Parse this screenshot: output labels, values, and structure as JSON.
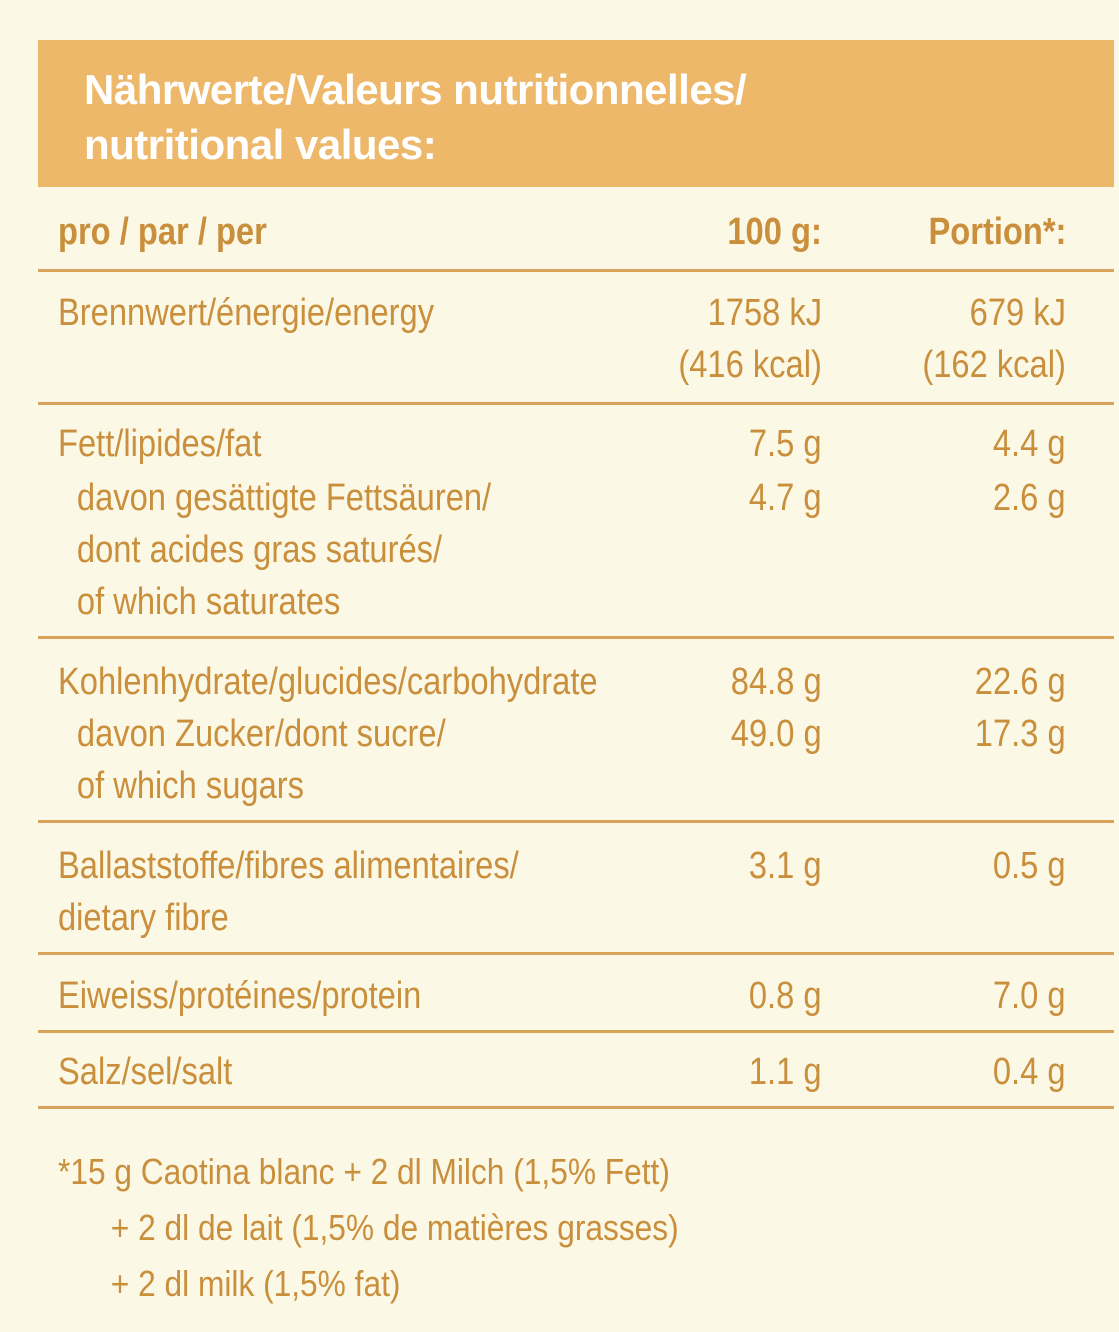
{
  "title": [
    "Nährwerte/Valeurs nutritionnelles/",
    "nutritional values:"
  ],
  "columns": {
    "label": "pro / par / per",
    "per100": "100 g:",
    "portion": "Portion*:"
  },
  "rows": [
    {
      "label": [
        "Brennwert/énergie/energy"
      ],
      "per100": [
        "1758 kJ",
        "(416 kcal)"
      ],
      "portion": [
        "679 kJ",
        "(162 kcal)"
      ]
    },
    {
      "label": [
        "Fett/lipides/fat"
      ],
      "per100": [
        "7.5 g"
      ],
      "portion": [
        "4.4 g"
      ]
    },
    {
      "label": [
        "davon gesättigte Fettsäuren/",
        "dont acides gras saturés/",
        "of which saturates"
      ],
      "per100": [
        "4.7 g"
      ],
      "portion": [
        "2.6 g"
      ]
    },
    {
      "label": [
        "Kohlenhydrate/glucides/carbohydrate"
      ],
      "per100": [
        "84.8 g"
      ],
      "portion": [
        "22.6 g"
      ]
    },
    {
      "label": [
        "davon Zucker/dont sucre/",
        "of which sugars"
      ],
      "per100": [
        "49.0 g"
      ],
      "portion": [
        "17.3 g"
      ]
    },
    {
      "label": [
        "Ballaststoffe/fibres alimentaires/",
        "dietary fibre"
      ],
      "per100": [
        "3.1 g"
      ],
      "portion": [
        "0.5 g"
      ]
    },
    {
      "label": [
        "Eiweiss/protéines/protein"
      ],
      "per100": [
        "0.8 g"
      ],
      "portion": [
        "7.0 g"
      ]
    },
    {
      "label": [
        "Salz/sel/salt"
      ],
      "per100": [
        "1.1 g"
      ],
      "portion": [
        "0.4 g"
      ]
    }
  ],
  "footnote": [
    "*15 g Caotina blanc + 2 dl Milch (1,5% Fett)",
    "+ 2 dl de lait (1,5% de matières grasses)",
    "+ 2 dl milk (1,5% fat)"
  ],
  "colors": {
    "accent": "#edb86a",
    "text": "#c98f3c",
    "background": "#fbf8e6"
  }
}
